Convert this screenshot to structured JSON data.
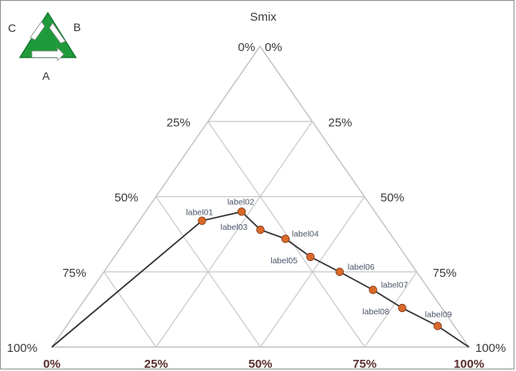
{
  "chart_data": {
    "type": "scatter",
    "subtype": "ternary",
    "title": "",
    "top_apex_label": "Smix",
    "legend_letters": {
      "a": "A",
      "b": "B",
      "c": "C"
    },
    "left_edge_ticks": [
      "100%",
      "75%",
      "50%",
      "25%",
      "0%"
    ],
    "right_edge_ticks": [
      "0%",
      "25%",
      "50%",
      "75%",
      "100%"
    ],
    "bottom_edge_ticks": [
      "0%",
      "25%",
      "50%",
      "75%",
      "100%"
    ],
    "line_color": "#333333",
    "marker_color": "#d9692a",
    "grid_color": "#c8c8c8",
    "logo_color": "#1e9a3a",
    "points": [
      {
        "label": "label01",
        "x": 0.36,
        "y": 0.42
      },
      {
        "label": "label02",
        "x": 0.455,
        "y": 0.45
      },
      {
        "label": "label03",
        "x": 0.5,
        "y": 0.39
      },
      {
        "label": "label04",
        "x": 0.56,
        "y": 0.36
      },
      {
        "label": "label05",
        "x": 0.62,
        "y": 0.3
      },
      {
        "label": "label06",
        "x": 0.69,
        "y": 0.25
      },
      {
        "label": "label07",
        "x": 0.77,
        "y": 0.19
      },
      {
        "label": "label08",
        "x": 0.84,
        "y": 0.13
      },
      {
        "label": "label09",
        "x": 0.925,
        "y": 0.07
      }
    ],
    "line_start": {
      "x": 0.0,
      "y": 0.0
    },
    "line_end": {
      "x": 1.0,
      "y": 0.0
    }
  }
}
